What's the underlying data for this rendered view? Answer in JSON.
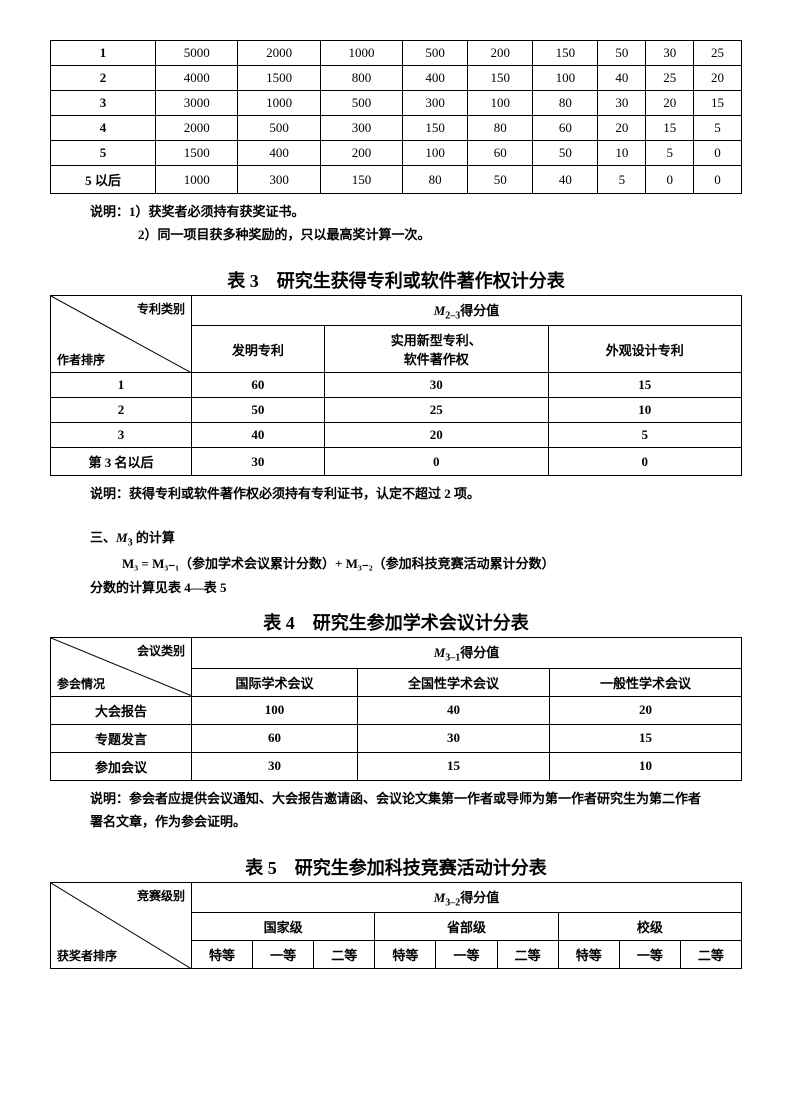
{
  "table1": {
    "rows": [
      [
        "1",
        "5000",
        "2000",
        "1000",
        "500",
        "200",
        "150",
        "50",
        "30",
        "25"
      ],
      [
        "2",
        "4000",
        "1500",
        "800",
        "400",
        "150",
        "100",
        "40",
        "25",
        "20"
      ],
      [
        "3",
        "3000",
        "1000",
        "500",
        "300",
        "100",
        "80",
        "30",
        "20",
        "15"
      ],
      [
        "4",
        "2000",
        "500",
        "300",
        "150",
        "80",
        "60",
        "20",
        "15",
        "5"
      ],
      [
        "5",
        "1500",
        "400",
        "200",
        "100",
        "60",
        "50",
        "10",
        "5",
        "0"
      ],
      [
        "5 以后",
        "1000",
        "300",
        "150",
        "80",
        "50",
        "40",
        "5",
        "0",
        "0"
      ]
    ],
    "note1": "说明：1）获奖者必须持有获奖证书。",
    "note2": "2）同一项目获多种奖励的，只以最高奖计算一次。"
  },
  "table3": {
    "title": "表 3　研究生获得专利或软件著作权计分表",
    "diag_top": "专利类别",
    "diag_bot": "作者排序",
    "score_prefix": "M",
    "score_sub": "2–3",
    "score_suffix": "得分值",
    "cols": [
      "发明专利",
      "实用新型专利、\n软件著作权",
      "外观设计专利"
    ],
    "rows": [
      [
        "1",
        "60",
        "30",
        "15"
      ],
      [
        "2",
        "50",
        "25",
        "10"
      ],
      [
        "3",
        "40",
        "20",
        "5"
      ],
      [
        "第 3 名以后",
        "30",
        "0",
        "0"
      ]
    ],
    "note": "说明：获得专利或软件著作权必须持有专利证书，认定不超过 2 项。"
  },
  "m3": {
    "line1_a": "三、",
    "line1_b": "M",
    "line1_sub": "3",
    "line1_c": " 的计算",
    "line2": "M₃ = M₃₋₁（参加学术会议累计分数）+ M₃₋₂（参加科技竞赛活动累计分数）",
    "line3": "分数的计算见表 4—表 5"
  },
  "table4": {
    "title": "表 4　研究生参加学术会议计分表",
    "diag_top": "会议类别",
    "diag_bot": "参会情况",
    "score_prefix": "M",
    "score_sub": "3–1",
    "score_suffix": "得分值",
    "cols": [
      "国际学术会议",
      "全国性学术会议",
      "一般性学术会议"
    ],
    "rows": [
      [
        "大会报告",
        "100",
        "40",
        "20"
      ],
      [
        "专题发言",
        "60",
        "30",
        "15"
      ],
      [
        "参加会议",
        "30",
        "15",
        "10"
      ]
    ],
    "note": "说明：参会者应提供会议通知、大会报告邀请函、会议论文集第一作者或导师为第一作者研究生为第二作者署名文章，作为参会证明。"
  },
  "table5": {
    "title": "表 5　研究生参加科技竞赛活动计分表",
    "diag_top": "竞赛级别",
    "diag_bot": "获奖者排序",
    "score_prefix": "M",
    "score_sub": "3–2",
    "score_suffix": "得分值",
    "groups": [
      "国家级",
      "省部级",
      "校级"
    ],
    "subcols": [
      "特等",
      "一等",
      "二等",
      "特等",
      "一等",
      "二等",
      "特等",
      "一等",
      "二等"
    ]
  }
}
